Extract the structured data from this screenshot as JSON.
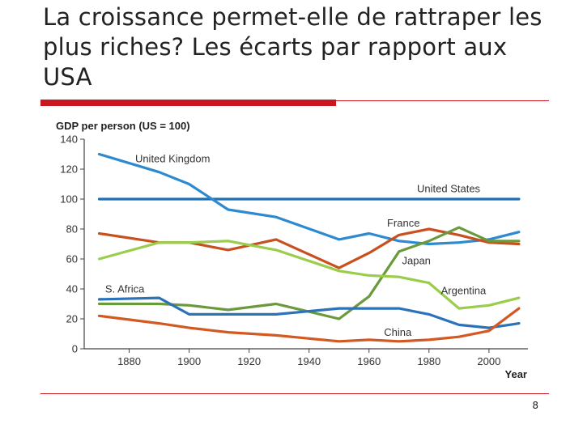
{
  "slide": {
    "title": "La croissance permet-elle de rattraper les plus riches? Les écarts par rapport aux USA",
    "page_number": "8"
  },
  "colors": {
    "rule": "#c8171e",
    "united_states": "#1f6fb5",
    "united_kingdom": "#2e8ad0",
    "france": "#c8501e",
    "japan": "#6a9a3c",
    "argentina": "#9acd4c",
    "s_africa": "#3d8a3c",
    "china": "#d25a22",
    "south_africa_blue": "#2c72b8"
  },
  "chart_data": {
    "type": "line",
    "title": "GDP per person (US = 100)",
    "xlabel": "Year",
    "ylabel": "",
    "xlim": [
      1865,
      2013
    ],
    "ylim": [
      0,
      140
    ],
    "xticks": [
      1880,
      1900,
      1920,
      1940,
      1960,
      1980,
      2000
    ],
    "yticks": [
      0,
      20,
      40,
      60,
      80,
      100,
      120,
      140
    ],
    "grid": false,
    "series": [
      {
        "name": "United States",
        "color": "#1f6fb5",
        "x": [
          1870,
          2010
        ],
        "y": [
          100,
          100
        ]
      },
      {
        "name": "United Kingdom",
        "color": "#2e8ad0",
        "x": [
          1870,
          1890,
          1900,
          1913,
          1929,
          1950,
          1960,
          1970,
          1980,
          1990,
          2000,
          2010
        ],
        "y": [
          130,
          118,
          110,
          93,
          88,
          73,
          77,
          72,
          70,
          71,
          73,
          78
        ]
      },
      {
        "name": "France",
        "color": "#c8501e",
        "x": [
          1870,
          1890,
          1900,
          1913,
          1929,
          1950,
          1960,
          1970,
          1980,
          1990,
          2000,
          2010
        ],
        "y": [
          77,
          71,
          71,
          66,
          73,
          54,
          64,
          76,
          80,
          76,
          71,
          70
        ]
      },
      {
        "name": "Japan",
        "color": "#6a9a3c",
        "x": [
          1870,
          1890,
          1900,
          1913,
          1929,
          1950,
          1960,
          1970,
          1980,
          1990,
          2000,
          2010
        ],
        "y": [
          30,
          30,
          29,
          26,
          30,
          20,
          35,
          65,
          72,
          81,
          72,
          72
        ]
      },
      {
        "name": "Argentina",
        "color": "#9acd4c",
        "x": [
          1870,
          1890,
          1900,
          1913,
          1929,
          1950,
          1960,
          1970,
          1980,
          1990,
          2000,
          2010
        ],
        "y": [
          60,
          71,
          71,
          72,
          66,
          52,
          49,
          48,
          44,
          27,
          29,
          34
        ]
      },
      {
        "name": "S. Africa",
        "color": "#2c72b8",
        "x": [
          1870,
          1890,
          1900,
          1913,
          1929,
          1950,
          1960,
          1970,
          1980,
          1990,
          2000,
          2010
        ],
        "y": [
          33,
          34,
          23,
          23,
          23,
          27,
          27,
          27,
          23,
          16,
          14,
          17
        ]
      },
      {
        "name": "China",
        "color": "#d25a22",
        "x": [
          1870,
          1890,
          1900,
          1913,
          1929,
          1950,
          1960,
          1970,
          1980,
          1990,
          2000,
          2010
        ],
        "y": [
          22,
          17,
          14,
          11,
          9,
          5,
          6,
          5,
          6,
          8,
          12,
          27
        ]
      }
    ],
    "labels": [
      {
        "text": "United Kingdom",
        "x": 1882,
        "y": 127
      },
      {
        "text": "United States",
        "x": 1976,
        "y": 107
      },
      {
        "text": "France",
        "x": 1966,
        "y": 84
      },
      {
        "text": "Japan",
        "x": 1971,
        "y": 59
      },
      {
        "text": "S. Africa",
        "x": 1872,
        "y": 40
      },
      {
        "text": "Argentina",
        "x": 1984,
        "y": 39
      },
      {
        "text": "China",
        "x": 1965,
        "y": 11
      }
    ]
  }
}
